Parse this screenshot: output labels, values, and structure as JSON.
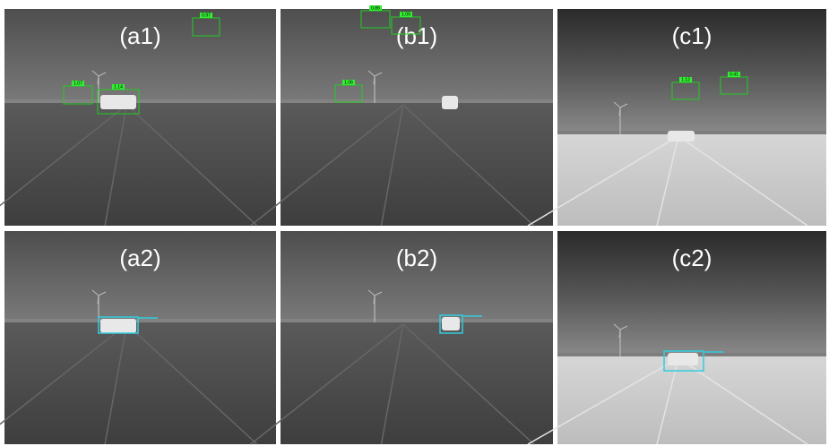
{
  "panels": [
    {
      "label": "(a1)",
      "boxes": [
        {
          "label": "0.97"
        },
        {
          "label": "1.07"
        },
        {
          "label": "1.14"
        }
      ]
    },
    {
      "label": "(b1)",
      "boxes": [
        {
          "label": "0.86"
        },
        {
          "label": "1.09"
        },
        {
          "label": "1.06"
        }
      ]
    },
    {
      "label": "(c1)",
      "boxes": [
        {
          "label": "1.12"
        },
        {
          "label": "0.41"
        }
      ]
    },
    {
      "label": "(a2)",
      "boxes": []
    },
    {
      "label": "(b2)",
      "boxes": []
    },
    {
      "label": "(c2)",
      "boxes": []
    }
  ]
}
